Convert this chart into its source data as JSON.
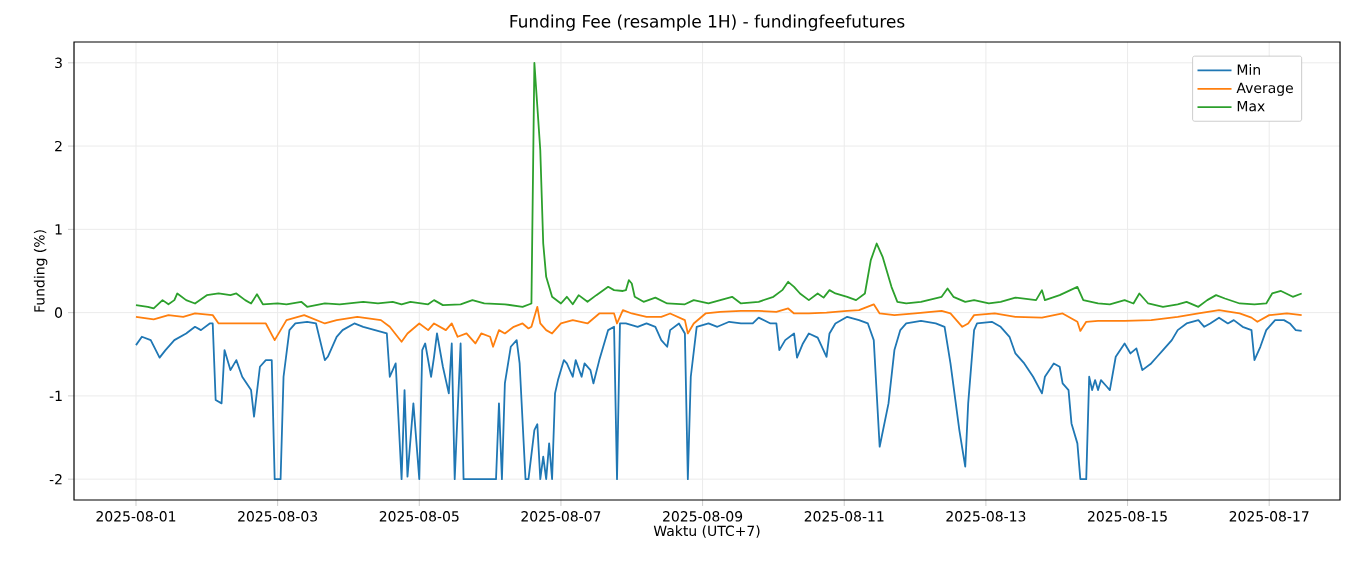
{
  "chart_data": {
    "type": "line",
    "title": "Funding Fee (resample 1H) - fundingfeefutures",
    "xlabel": "Waktu (UTC+7)",
    "ylabel": "Funding (%)",
    "xlim": [
      "2025-07-31T03:00",
      "2025-08-18T00:00"
    ],
    "ylim": [
      -2.25,
      3.25
    ],
    "xticks": [
      "2025-08-01",
      "2025-08-03",
      "2025-08-05",
      "2025-08-07",
      "2025-08-09",
      "2025-08-11",
      "2025-08-13",
      "2025-08-15",
      "2025-08-17"
    ],
    "yticks": [
      -2,
      -1,
      0,
      1,
      2,
      3
    ],
    "grid": true,
    "legend": "top right",
    "marker": "none",
    "line_style": "solid",
    "series": [
      {
        "name": "Min",
        "color": "#1f77b4",
        "x": [
          "2025-08-01T00:00",
          "2025-08-01T02:00",
          "2025-08-01T05:00",
          "2025-08-01T08:00",
          "2025-08-01T10:00",
          "2025-08-01T13:00",
          "2025-08-01T17:00",
          "2025-08-01T20:00",
          "2025-08-01T22:00",
          "2025-08-02T01:00",
          "2025-08-02T02:00",
          "2025-08-02T03:00",
          "2025-08-02T05:00",
          "2025-08-02T06:00",
          "2025-08-02T08:00",
          "2025-08-02T10:00",
          "2025-08-02T12:00",
          "2025-08-02T15:00",
          "2025-08-02T16:00",
          "2025-08-02T18:00",
          "2025-08-02T20:00",
          "2025-08-02T22:00",
          "2025-08-02T23:00",
          "2025-08-03T01:00",
          "2025-08-03T02:00",
          "2025-08-03T04:00",
          "2025-08-03T06:00",
          "2025-08-03T10:00",
          "2025-08-03T13:00",
          "2025-08-03T16:00",
          "2025-08-03T17:00",
          "2025-08-03T20:00",
          "2025-08-03T22:00",
          "2025-08-04T02:00",
          "2025-08-04T05:00",
          "2025-08-04T09:00",
          "2025-08-04T13:00",
          "2025-08-04T14:00",
          "2025-08-04T16:00",
          "2025-08-04T18:00",
          "2025-08-04T19:00",
          "2025-08-04T20:00",
          "2025-08-04T22:00",
          "2025-08-05T00:00",
          "2025-08-05T01:00",
          "2025-08-05T02:00",
          "2025-08-05T04:00",
          "2025-08-05T05:00",
          "2025-08-05T06:00",
          "2025-08-05T08:00",
          "2025-08-05T10:00",
          "2025-08-05T11:00",
          "2025-08-05T12:00",
          "2025-08-05T14:00",
          "2025-08-05T15:00",
          "2025-08-05T18:00",
          "2025-08-05T23:00",
          "2025-08-06T02:00",
          "2025-08-06T03:00",
          "2025-08-06T04:00",
          "2025-08-06T05:00",
          "2025-08-06T07:00",
          "2025-08-06T09:00",
          "2025-08-06T10:00",
          "2025-08-06T12:00",
          "2025-08-06T13:00",
          "2025-08-06T15:00",
          "2025-08-06T16:00",
          "2025-08-06T17:00",
          "2025-08-06T18:00",
          "2025-08-06T19:00",
          "2025-08-06T20:00",
          "2025-08-06T21:00",
          "2025-08-06T22:00",
          "2025-08-06T23:00",
          "2025-08-07T01:00",
          "2025-08-07T02:00",
          "2025-08-07T04:00",
          "2025-08-07T05:00",
          "2025-08-07T07:00",
          "2025-08-07T08:00",
          "2025-08-07T10:00",
          "2025-08-07T11:00",
          "2025-08-07T13:00",
          "2025-08-07T16:00",
          "2025-08-07T18:00",
          "2025-08-07T19:00",
          "2025-08-07T20:00",
          "2025-08-07T22:00",
          "2025-08-08T02:00",
          "2025-08-08T05:00",
          "2025-08-08T08:00",
          "2025-08-08T10:00",
          "2025-08-08T12:00",
          "2025-08-08T13:00",
          "2025-08-08T16:00",
          "2025-08-08T18:00",
          "2025-08-08T19:00",
          "2025-08-08T20:00",
          "2025-08-08T22:00",
          "2025-08-09T02:00",
          "2025-08-09T05:00",
          "2025-08-09T09:00",
          "2025-08-09T13:00",
          "2025-08-09T17:00",
          "2025-08-09T19:00",
          "2025-08-09T23:00",
          "2025-08-10T01:00",
          "2025-08-10T02:00",
          "2025-08-10T04:00",
          "2025-08-10T07:00",
          "2025-08-10T08:00",
          "2025-08-10T10:00",
          "2025-08-10T12:00",
          "2025-08-10T15:00",
          "2025-08-10T18:00",
          "2025-08-10T19:00",
          "2025-08-10T21:00",
          "2025-08-11T01:00",
          "2025-08-11T05:00",
          "2025-08-11T08:00",
          "2025-08-11T10:00",
          "2025-08-11T12:00",
          "2025-08-11T15:00",
          "2025-08-11T17:00",
          "2025-08-11T19:00",
          "2025-08-11T21:00",
          "2025-08-12T02:00",
          "2025-08-12T07:00",
          "2025-08-12T10:00",
          "2025-08-12T12:00",
          "2025-08-12T15:00",
          "2025-08-12T17:00",
          "2025-08-12T18:00",
          "2025-08-12T20:00",
          "2025-08-12T21:00",
          "2025-08-13T02:00",
          "2025-08-13T05:00",
          "2025-08-13T08:00",
          "2025-08-13T10:00",
          "2025-08-13T13:00",
          "2025-08-13T16:00",
          "2025-08-13T19:00",
          "2025-08-13T20:00",
          "2025-08-13T23:00",
          "2025-08-14T01:00",
          "2025-08-14T02:00",
          "2025-08-14T04:00",
          "2025-08-14T05:00",
          "2025-08-14T07:00",
          "2025-08-14T08:00",
          "2025-08-14T10:00",
          "2025-08-14T11:00",
          "2025-08-14T12:00",
          "2025-08-14T13:00",
          "2025-08-14T14:00",
          "2025-08-14T15:00",
          "2025-08-14T17:00",
          "2025-08-14T18:00",
          "2025-08-14T20:00",
          "2025-08-14T23:00",
          "2025-08-15T01:00",
          "2025-08-15T03:00",
          "2025-08-15T05:00",
          "2025-08-15T08:00",
          "2025-08-15T10:00",
          "2025-08-15T12:00",
          "2025-08-15T15:00",
          "2025-08-15T17:00",
          "2025-08-15T20:00",
          "2025-08-16T00:00",
          "2025-08-16T02:00",
          "2025-08-16T04:00",
          "2025-08-16T07:00",
          "2025-08-16T10:00",
          "2025-08-16T12:00",
          "2025-08-16T15:00",
          "2025-08-16T18:00",
          "2025-08-16T19:00",
          "2025-08-16T21:00",
          "2025-08-16T23:00",
          "2025-08-17T02:00",
          "2025-08-17T05:00",
          "2025-08-17T07:00",
          "2025-08-17T09:00",
          "2025-08-17T11:00"
        ],
        "values": [
          -0.39,
          -0.29,
          -0.33,
          -0.54,
          -0.45,
          -0.33,
          -0.25,
          -0.17,
          -0.21,
          -0.13,
          -0.13,
          -1.05,
          -1.09,
          -0.45,
          -0.69,
          -0.57,
          -0.77,
          -0.93,
          -1.25,
          -0.65,
          -0.57,
          -0.57,
          -2.0,
          -2.0,
          -0.77,
          -0.21,
          -0.13,
          -0.11,
          -0.13,
          -0.57,
          -0.53,
          -0.29,
          -0.21,
          -0.13,
          -0.17,
          -0.21,
          -0.25,
          -0.77,
          -0.61,
          -2.0,
          -0.93,
          -1.97,
          -1.09,
          -2.0,
          -0.45,
          -0.37,
          -0.77,
          -0.53,
          -0.25,
          -0.65,
          -0.97,
          -0.37,
          -2.0,
          -0.37,
          -2.0,
          -2.0,
          -2.0,
          -2.0,
          -1.09,
          -2.0,
          -0.85,
          -0.41,
          -0.33,
          -0.61,
          -2.0,
          -2.0,
          -1.41,
          -1.34,
          -2.0,
          -1.73,
          -2.0,
          -1.57,
          -2.0,
          -0.97,
          -0.81,
          -0.57,
          -0.61,
          -0.77,
          -0.57,
          -0.77,
          -0.61,
          -0.69,
          -0.85,
          -0.57,
          -0.21,
          -0.17,
          -2.0,
          -0.13,
          -0.13,
          -0.17,
          -0.13,
          -0.17,
          -0.33,
          -0.41,
          -0.21,
          -0.13,
          -0.25,
          -2.0,
          -0.77,
          -0.17,
          -0.13,
          -0.17,
          -0.11,
          -0.13,
          -0.13,
          -0.06,
          -0.13,
          -0.13,
          -0.45,
          -0.33,
          -0.25,
          -0.54,
          -0.37,
          -0.25,
          -0.3,
          -0.53,
          -0.25,
          -0.13,
          -0.05,
          -0.09,
          -0.13,
          -0.33,
          -1.61,
          -1.09,
          -0.45,
          -0.21,
          -0.13,
          -0.1,
          -0.13,
          -0.17,
          -0.61,
          -1.41,
          -1.85,
          -1.09,
          -0.21,
          -0.13,
          -0.11,
          -0.17,
          -0.29,
          -0.49,
          -0.61,
          -0.77,
          -0.97,
          -0.77,
          -0.61,
          -0.65,
          -0.85,
          -0.93,
          -1.33,
          -1.57,
          -2.0,
          -2.0,
          -0.77,
          -0.93,
          -0.81,
          -0.93,
          -0.81,
          -0.89,
          -0.93,
          -0.53,
          -0.37,
          -0.49,
          -0.43,
          -0.69,
          -0.61,
          -0.53,
          -0.45,
          -0.33,
          -0.21,
          -0.13,
          -0.09,
          -0.17,
          -0.13,
          -0.06,
          -0.13,
          -0.09,
          -0.17,
          -0.21,
          -0.57,
          -0.41,
          -0.21,
          -0.09,
          -0.09,
          -0.13,
          -0.21,
          -0.22
        ]
      },
      {
        "name": "Average",
        "color": "#ff7f0e",
        "x": [
          "2025-08-01T00:00",
          "2025-08-01T06:00",
          "2025-08-01T11:00",
          "2025-08-01T16:00",
          "2025-08-01T20:00",
          "2025-08-02T02:00",
          "2025-08-02T04:00",
          "2025-08-02T10:00",
          "2025-08-02T16:00",
          "2025-08-02T20:00",
          "2025-08-02T23:00",
          "2025-08-03T01:00",
          "2025-08-03T03:00",
          "2025-08-03T09:00",
          "2025-08-03T16:00",
          "2025-08-03T20:00",
          "2025-08-04T03:00",
          "2025-08-04T11:00",
          "2025-08-04T14:00",
          "2025-08-04T18:00",
          "2025-08-04T20:00",
          "2025-08-05T00:00",
          "2025-08-05T03:00",
          "2025-08-05T05:00",
          "2025-08-05T09:00",
          "2025-08-05T11:00",
          "2025-08-05T13:00",
          "2025-08-05T16:00",
          "2025-08-05T19:00",
          "2025-08-05T21:00",
          "2025-08-06T00:00",
          "2025-08-06T01:00",
          "2025-08-06T03:00",
          "2025-08-06T05:00",
          "2025-08-06T08:00",
          "2025-08-06T11:00",
          "2025-08-06T13:00",
          "2025-08-06T14:00",
          "2025-08-06T16:00",
          "2025-08-06T17:00",
          "2025-08-06T19:00",
          "2025-08-06T21:00",
          "2025-08-07T00:00",
          "2025-08-07T04:00",
          "2025-08-07T09:00",
          "2025-08-07T13:00",
          "2025-08-07T18:00",
          "2025-08-07T19:00",
          "2025-08-07T21:00",
          "2025-08-08T00:00",
          "2025-08-08T05:00",
          "2025-08-08T10:00",
          "2025-08-08T13:00",
          "2025-08-08T18:00",
          "2025-08-08T19:00",
          "2025-08-08T21:00",
          "2025-08-09T01:00",
          "2025-08-09T06:00",
          "2025-08-09T13:00",
          "2025-08-09T19:00",
          "2025-08-10T01:00",
          "2025-08-10T05:00",
          "2025-08-10T07:00",
          "2025-08-10T12:00",
          "2025-08-10T18:00",
          "2025-08-11T01:00",
          "2025-08-11T05:00",
          "2025-08-11T10:00",
          "2025-08-11T12:00",
          "2025-08-11T17:00",
          "2025-08-12T00:00",
          "2025-08-12T09:00",
          "2025-08-12T12:00",
          "2025-08-12T16:00",
          "2025-08-12T18:00",
          "2025-08-12T20:00",
          "2025-08-13T03:00",
          "2025-08-13T10:00",
          "2025-08-13T19:00",
          "2025-08-14T02:00",
          "2025-08-14T07:00",
          "2025-08-14T08:00",
          "2025-08-14T10:00",
          "2025-08-14T14:00",
          "2025-08-14T23:00",
          "2025-08-15T08:00",
          "2025-08-15T17:00",
          "2025-08-16T00:00",
          "2025-08-16T07:00",
          "2025-08-16T14:00",
          "2025-08-16T18:00",
          "2025-08-16T20:00",
          "2025-08-17T00:00",
          "2025-08-17T06:00",
          "2025-08-17T11:00"
        ],
        "values": [
          -0.05,
          -0.08,
          -0.03,
          -0.05,
          -0.01,
          -0.03,
          -0.13,
          -0.13,
          -0.13,
          -0.13,
          -0.33,
          -0.21,
          -0.09,
          -0.03,
          -0.13,
          -0.09,
          -0.05,
          -0.09,
          -0.17,
          -0.35,
          -0.25,
          -0.13,
          -0.21,
          -0.13,
          -0.21,
          -0.13,
          -0.29,
          -0.25,
          -0.37,
          -0.25,
          -0.29,
          -0.41,
          -0.21,
          -0.25,
          -0.17,
          -0.13,
          -0.19,
          -0.17,
          0.07,
          -0.13,
          -0.21,
          -0.25,
          -0.13,
          -0.09,
          -0.13,
          -0.01,
          -0.01,
          -0.13,
          0.03,
          -0.01,
          -0.05,
          -0.05,
          -0.01,
          -0.09,
          -0.25,
          -0.13,
          -0.01,
          0.01,
          0.02,
          0.02,
          0.01,
          0.05,
          -0.01,
          -0.01,
          0.0,
          0.02,
          0.03,
          0.1,
          -0.01,
          -0.03,
          -0.01,
          0.02,
          -0.01,
          -0.17,
          -0.13,
          -0.03,
          -0.01,
          -0.05,
          -0.06,
          -0.01,
          -0.11,
          -0.22,
          -0.11,
          -0.1,
          -0.1,
          -0.09,
          -0.05,
          -0.01,
          0.03,
          -0.01,
          -0.06,
          -0.11,
          -0.03,
          -0.01,
          -0.03
        ]
      },
      {
        "name": "Max",
        "color": "#2ca02c",
        "x": [
          "2025-08-01T00:00",
          "2025-08-01T04:00",
          "2025-08-01T06:00",
          "2025-08-01T09:00",
          "2025-08-01T11:00",
          "2025-08-01T13:00",
          "2025-08-01T14:00",
          "2025-08-01T17:00",
          "2025-08-01T20:00",
          "2025-08-02T00:00",
          "2025-08-02T04:00",
          "2025-08-02T08:00",
          "2025-08-02T10:00",
          "2025-08-02T13:00",
          "2025-08-02T15:00",
          "2025-08-02T17:00",
          "2025-08-02T19:00",
          "2025-08-03T00:00",
          "2025-08-03T03:00",
          "2025-08-03T08:00",
          "2025-08-03T10:00",
          "2025-08-03T16:00",
          "2025-08-03T21:00",
          "2025-08-04T05:00",
          "2025-08-04T10:00",
          "2025-08-04T15:00",
          "2025-08-04T18:00",
          "2025-08-04T21:00",
          "2025-08-05T03:00",
          "2025-08-05T05:00",
          "2025-08-05T08:00",
          "2025-08-05T14:00",
          "2025-08-05T18:00",
          "2025-08-05T22:00",
          "2025-08-06T05:00",
          "2025-08-06T11:00",
          "2025-08-06T14:00",
          "2025-08-06T15:00",
          "2025-08-06T17:00",
          "2025-08-06T18:00",
          "2025-08-06T19:00",
          "2025-08-06T21:00",
          "2025-08-07T00:00",
          "2025-08-07T02:00",
          "2025-08-07T04:00",
          "2025-08-07T06:00",
          "2025-08-07T09:00",
          "2025-08-07T12:00",
          "2025-08-07T16:00",
          "2025-08-07T18:00",
          "2025-08-07T21:00",
          "2025-08-07T22:00",
          "2025-08-07T23:00",
          "2025-08-08T00:00",
          "2025-08-08T01:00",
          "2025-08-08T04:00",
          "2025-08-08T08:00",
          "2025-08-08T12:00",
          "2025-08-08T18:00",
          "2025-08-08T21:00",
          "2025-08-09T02:00",
          "2025-08-09T06:00",
          "2025-08-09T10:00",
          "2025-08-09T13:00",
          "2025-08-09T19:00",
          "2025-08-10T00:00",
          "2025-08-10T03:00",
          "2025-08-10T05:00",
          "2025-08-10T07:00",
          "2025-08-10T09:00",
          "2025-08-10T12:00",
          "2025-08-10T15:00",
          "2025-08-10T17:00",
          "2025-08-10T19:00",
          "2025-08-10T21:00",
          "2025-08-11T01:00",
          "2025-08-11T04:00",
          "2025-08-11T07:00",
          "2025-08-11T09:00",
          "2025-08-11T11:00",
          "2025-08-11T13:00",
          "2025-08-11T16:00",
          "2025-08-11T18:00",
          "2025-08-11T21:00",
          "2025-08-12T02:00",
          "2025-08-12T09:00",
          "2025-08-12T11:00",
          "2025-08-12T13:00",
          "2025-08-12T17:00",
          "2025-08-12T20:00",
          "2025-08-13T01:00",
          "2025-08-13T05:00",
          "2025-08-13T10:00",
          "2025-08-13T17:00",
          "2025-08-13T19:00",
          "2025-08-13T20:00",
          "2025-08-14T01:00",
          "2025-08-14T04:00",
          "2025-08-14T07:00",
          "2025-08-14T09:00",
          "2025-08-14T14:00",
          "2025-08-14T18:00",
          "2025-08-14T23:00",
          "2025-08-15T02:00",
          "2025-08-15T04:00",
          "2025-08-15T07:00",
          "2025-08-15T12:00",
          "2025-08-15T17:00",
          "2025-08-15T20:00",
          "2025-08-16T00:00",
          "2025-08-16T03:00",
          "2025-08-16T06:00",
          "2025-08-16T09:00",
          "2025-08-16T14:00",
          "2025-08-16T19:00",
          "2025-08-16T23:00",
          "2025-08-17T01:00",
          "2025-08-17T04:00",
          "2025-08-17T08:00",
          "2025-08-17T11:00"
        ],
        "values": [
          0.09,
          0.07,
          0.05,
          0.15,
          0.1,
          0.15,
          0.23,
          0.15,
          0.11,
          0.21,
          0.23,
          0.21,
          0.23,
          0.15,
          0.11,
          0.22,
          0.1,
          0.11,
          0.1,
          0.13,
          0.07,
          0.11,
          0.1,
          0.13,
          0.11,
          0.13,
          0.1,
          0.13,
          0.1,
          0.15,
          0.09,
          0.1,
          0.15,
          0.11,
          0.1,
          0.07,
          0.11,
          3.0,
          1.95,
          0.83,
          0.43,
          0.19,
          0.11,
          0.19,
          0.1,
          0.21,
          0.13,
          0.21,
          0.31,
          0.27,
          0.26,
          0.27,
          0.39,
          0.35,
          0.19,
          0.13,
          0.18,
          0.11,
          0.1,
          0.15,
          0.11,
          0.15,
          0.19,
          0.11,
          0.13,
          0.19,
          0.27,
          0.37,
          0.31,
          0.23,
          0.15,
          0.23,
          0.18,
          0.27,
          0.23,
          0.19,
          0.15,
          0.23,
          0.63,
          0.83,
          0.67,
          0.31,
          0.13,
          0.11,
          0.13,
          0.19,
          0.29,
          0.19,
          0.13,
          0.15,
          0.11,
          0.13,
          0.18,
          0.15,
          0.27,
          0.15,
          0.21,
          0.26,
          0.31,
          0.15,
          0.11,
          0.1,
          0.15,
          0.11,
          0.23,
          0.11,
          0.07,
          0.1,
          0.13,
          0.07,
          0.15,
          0.21,
          0.17,
          0.11,
          0.1,
          0.11,
          0.23,
          0.26,
          0.19,
          0.23
        ]
      }
    ]
  }
}
